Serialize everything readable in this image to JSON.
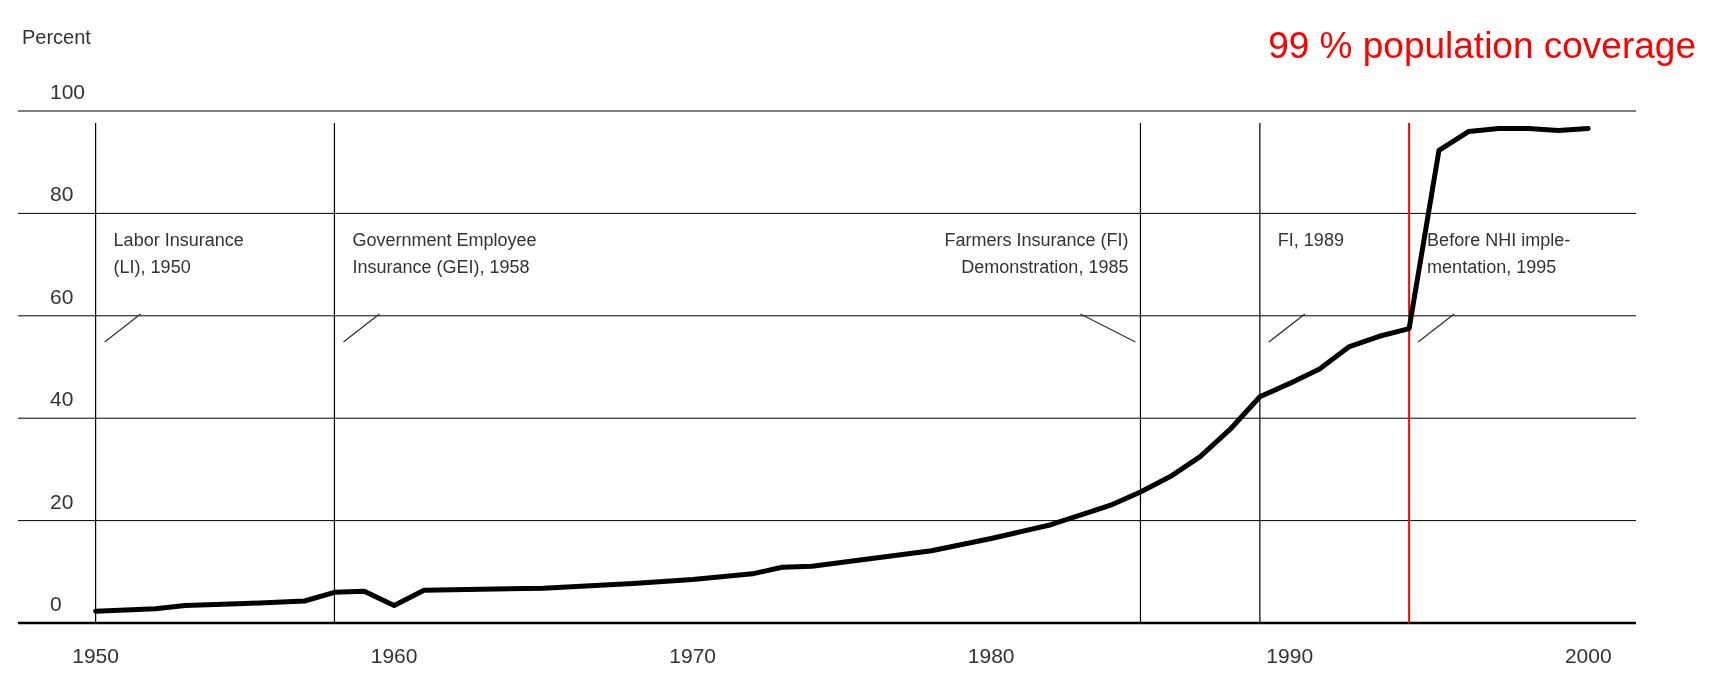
{
  "chart_data": {
    "type": "line",
    "ylabel": "Percent",
    "x": [
      1950,
      1952,
      1953,
      1955,
      1957,
      1958,
      1959,
      1960,
      1961,
      1965,
      1968,
      1970,
      1972,
      1973,
      1974,
      1976,
      1978,
      1980,
      1982,
      1984,
      1985,
      1986,
      1987,
      1988,
      1989,
      1990,
      1991,
      1992,
      1993,
      1994,
      1995,
      1996,
      1997,
      1998,
      1999,
      2000
    ],
    "series": [
      {
        "color": "#000000",
        "values": [
          2.3,
          2.8,
          3.4,
          3.8,
          4.3,
          6,
          6.2,
          3.4,
          6.4,
          6.8,
          7.7,
          8.5,
          9.6,
          10.9,
          11.1,
          12.6,
          14.1,
          16.5,
          19.2,
          23,
          25.6,
          28.6,
          32.5,
          37.8,
          44.2,
          46.8,
          49.6,
          54,
          56,
          57.5,
          92.3,
          96,
          96.6,
          96.6,
          96.2,
          96.6
        ]
      }
    ],
    "xlim": [
      1947.4,
      2001.6
    ],
    "xticks": [
      1950,
      1960,
      1970,
      1980,
      1990,
      2000
    ],
    "ylim": [
      0,
      100
    ],
    "yticks": [
      0,
      20,
      40,
      60,
      80,
      100
    ],
    "grid": "y",
    "marker": "none",
    "line_style": "solid",
    "ref_lines": [
      {
        "axis": "x",
        "value": 1950,
        "label": "Labor Insurance\n(LI), 1950",
        "color": "#000000"
      },
      {
        "axis": "x",
        "value": 1958,
        "label": "Government Employee\nInsurance (GEI), 1958",
        "color": "#000000"
      },
      {
        "axis": "x",
        "value": 1985,
        "label": "Farmers Insurance (FI)\nDemonstration, 1985",
        "color": "#000000"
      },
      {
        "axis": "x",
        "value": 1989,
        "label": "FI, 1989",
        "color": "#000000"
      },
      {
        "axis": "x",
        "value": 1994,
        "label": "Before NHI imple-\nmentation, 1995",
        "color": "#ff0000"
      }
    ],
    "annotations": [
      "99 % population coverage"
    ]
  }
}
